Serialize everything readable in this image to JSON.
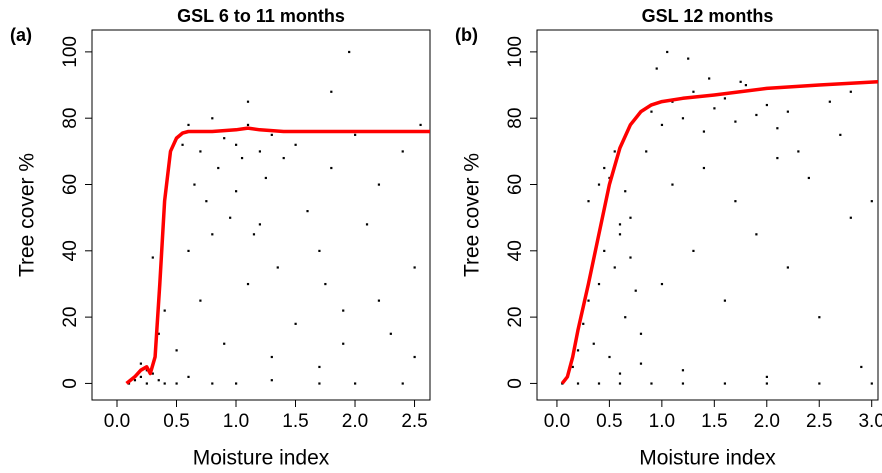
{
  "chart_data": [
    {
      "type": "scatter",
      "label": "(a)",
      "title": "GSL 6 to 11 months",
      "xlabel": "Moisture index",
      "ylabel": "Tree cover %",
      "xlim": [
        -0.21,
        2.63
      ],
      "ylim": [
        -5,
        106.6
      ],
      "xticks": [
        {
          "value": 0,
          "label": "0.0"
        },
        {
          "value": 0.5,
          "label": "0.5"
        },
        {
          "value": 1,
          "label": "1.0"
        },
        {
          "value": 1.5,
          "label": "1.5"
        },
        {
          "value": 2,
          "label": "2.0"
        },
        {
          "value": 2.5,
          "label": "2.5"
        }
      ],
      "yticks": [
        0,
        20,
        40,
        60,
        80,
        100
      ],
      "series": [
        {
          "type": "scatter",
          "color": "#000000",
          "x": [
            0.1,
            0.15,
            0.2,
            0.25,
            0.3,
            0.35,
            0.4,
            0.5,
            0.6,
            0.8,
            1.0,
            1.3,
            1.7,
            2.0,
            2.4,
            0.2,
            0.25,
            0.3,
            0.35,
            0.4,
            0.55,
            0.6,
            0.65,
            0.7,
            0.75,
            0.8,
            0.85,
            0.9,
            0.95,
            1.0,
            1.05,
            1.1,
            1.15,
            1.2,
            1.25,
            1.3,
            1.35,
            1.4,
            1.5,
            1.6,
            1.7,
            1.75,
            1.8,
            1.9,
            2.0,
            2.1,
            2.2,
            2.3,
            2.4,
            2.5,
            2.55,
            0.5,
            0.7,
            0.9,
            1.1,
            1.3,
            1.5,
            1.7,
            1.9,
            2.2,
            2.5,
            1.1,
            1.8,
            1.95,
            0.6,
            0.8,
            1.0,
            1.2
          ],
          "values": [
            0,
            1,
            2,
            0,
            3,
            1,
            0,
            0,
            2,
            0,
            0,
            1,
            0,
            0,
            0,
            6,
            4,
            38,
            15,
            22,
            72,
            78,
            60,
            70,
            55,
            80,
            65,
            74,
            50,
            72,
            68,
            78,
            45,
            70,
            62,
            75,
            35,
            68,
            72,
            52,
            40,
            30,
            65,
            22,
            75,
            48,
            60,
            15,
            70,
            35,
            78,
            10,
            25,
            12,
            30,
            8,
            18,
            5,
            12,
            25,
            8,
            85,
            88,
            100,
            40,
            45,
            58,
            48
          ]
        },
        {
          "type": "line",
          "color": "#ff0000",
          "x": [
            0.08,
            0.15,
            0.2,
            0.25,
            0.28,
            0.32,
            0.36,
            0.4,
            0.45,
            0.5,
            0.55,
            0.6,
            0.8,
            1.0,
            1.1,
            1.2,
            1.4,
            1.8,
            2.2,
            2.63
          ],
          "values": [
            0,
            2,
            4,
            5,
            3,
            8,
            30,
            55,
            70,
            74,
            75.5,
            76,
            76,
            76.5,
            77,
            76.5,
            76,
            76,
            76,
            76
          ]
        }
      ]
    },
    {
      "type": "scatter",
      "label": "(b)",
      "title": "GSL 12 months",
      "xlabel": "Moisture index",
      "ylabel": "Tree cover %",
      "xlim": [
        -0.19,
        3.06
      ],
      "ylim": [
        -5,
        106.6
      ],
      "xticks": [
        {
          "value": 0,
          "label": "0.0"
        },
        {
          "value": 0.5,
          "label": "0.5"
        },
        {
          "value": 1,
          "label": "1.0"
        },
        {
          "value": 1.5,
          "label": "1.5"
        },
        {
          "value": 2,
          "label": "2.0"
        },
        {
          "value": 2.5,
          "label": "2.5"
        },
        {
          "value": 3,
          "label": "3.0"
        }
      ],
      "yticks": [
        0,
        20,
        40,
        60,
        80,
        100
      ],
      "series": [
        {
          "type": "scatter",
          "color": "#000000",
          "x": [
            0.05,
            0.2,
            0.4,
            0.6,
            0.9,
            1.2,
            1.6,
            2.0,
            2.5,
            3.0,
            0.15,
            0.2,
            0.25,
            0.3,
            0.35,
            0.4,
            0.45,
            0.5,
            0.55,
            0.6,
            0.65,
            0.7,
            0.75,
            0.8,
            0.3,
            0.4,
            0.5,
            0.6,
            0.7,
            0.45,
            0.55,
            0.65,
            0.9,
            1.0,
            1.1,
            1.2,
            1.3,
            1.4,
            1.5,
            1.6,
            1.7,
            1.8,
            1.9,
            2.0,
            2.1,
            2.2,
            0.95,
            1.05,
            1.25,
            1.45,
            1.75,
            2.3,
            2.6,
            2.8,
            1.0,
            1.3,
            1.6,
            1.9,
            2.2,
            2.5,
            2.8,
            3.0,
            0.85,
            1.1,
            1.4,
            1.7,
            2.1,
            2.4,
            2.7,
            0.6,
            0.8,
            1.2,
            2.0,
            2.9
          ],
          "values": [
            0,
            0,
            0,
            0,
            0,
            0,
            0,
            0,
            0,
            0,
            5,
            10,
            18,
            25,
            12,
            30,
            40,
            8,
            35,
            45,
            20,
            50,
            28,
            15,
            55,
            60,
            62,
            48,
            38,
            65,
            70,
            58,
            82,
            78,
            85,
            80,
            88,
            76,
            83,
            86,
            79,
            90,
            81,
            84,
            77,
            82,
            95,
            100,
            98,
            92,
            91,
            70,
            85,
            88,
            30,
            40,
            25,
            45,
            35,
            20,
            50,
            55,
            70,
            60,
            65,
            55,
            68,
            62,
            75,
            3,
            6,
            4,
            2,
            5
          ]
        },
        {
          "type": "line",
          "color": "#ff0000",
          "x": [
            0.05,
            0.1,
            0.15,
            0.2,
            0.3,
            0.4,
            0.5,
            0.6,
            0.7,
            0.8,
            0.9,
            1.0,
            1.2,
            1.5,
            2.0,
            2.5,
            3.06
          ],
          "values": [
            0,
            2,
            8,
            16,
            30,
            45,
            60,
            71,
            78,
            82,
            84,
            85,
            86,
            87,
            89,
            90,
            91
          ]
        }
      ]
    }
  ]
}
